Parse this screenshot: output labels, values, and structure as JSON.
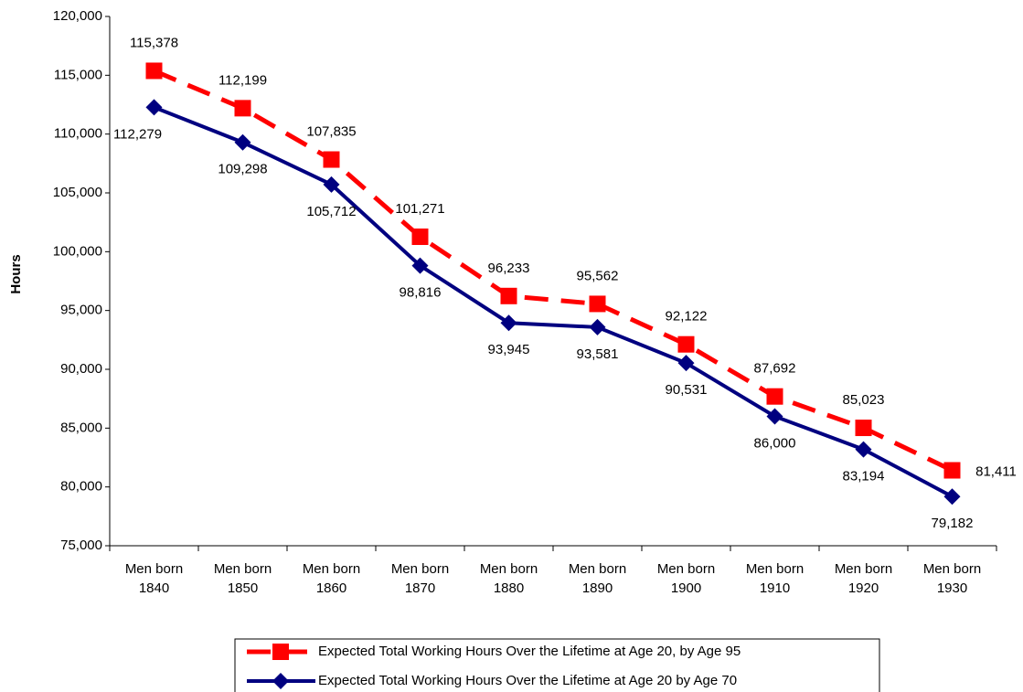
{
  "chart_data": {
    "type": "line",
    "y_label": "Hours",
    "categories": [
      "Men born 1840",
      "Men born 1850",
      "Men born 1860",
      "Men born 1870",
      "Men born 1880",
      "Men born 1890",
      "Men born 1900",
      "Men born 1910",
      "Men born 1920",
      "Men born 1930"
    ],
    "series": [
      {
        "name": "Expected Total Working Hours Over the Lifetime at Age 20, by Age 95",
        "color": "#ff0000",
        "values": [
          115378,
          112199,
          107835,
          101271,
          96233,
          95562,
          92122,
          87692,
          85023,
          81411
        ],
        "value_labels": [
          "115,378",
          "112,199",
          "107,835",
          "101,271",
          "96,233",
          "95,562",
          "92,122",
          "87,692",
          "85,023",
          "81,411"
        ]
      },
      {
        "name": "Expected Total Working Hours Over the Lifetime at Age 20 by Age 70",
        "color": "#000080",
        "values": [
          112279,
          109298,
          105712,
          98816,
          93945,
          93581,
          90531,
          86000,
          83194,
          79182
        ],
        "value_labels": [
          "112,279",
          "109,298",
          "105,712",
          "98,816",
          "93,945",
          "93,581",
          "90,531",
          "86,000",
          "83,194",
          "79,182"
        ]
      }
    ],
    "ylim": [
      75000,
      120000
    ],
    "yticks": [
      {
        "value": 75000,
        "label": "75,000"
      },
      {
        "value": 80000,
        "label": "80,000"
      },
      {
        "value": 85000,
        "label": "85,000"
      },
      {
        "value": 90000,
        "label": "90,000"
      },
      {
        "value": 95000,
        "label": "95,000"
      },
      {
        "value": 100000,
        "label": "100,000"
      },
      {
        "value": 105000,
        "label": "105,000"
      },
      {
        "value": 110000,
        "label": "110,000"
      },
      {
        "value": 115000,
        "label": "115,000"
      },
      {
        "value": 120000,
        "label": "120,000"
      }
    ],
    "grid": false
  }
}
